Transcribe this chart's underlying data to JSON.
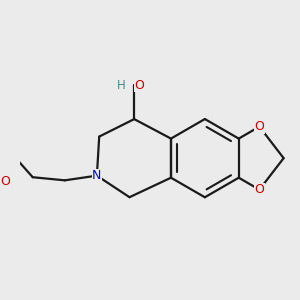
{
  "background_color": "#ebebeb",
  "bond_color": "#1a1a1a",
  "atom_colors": {
    "O": "#cc0000",
    "N": "#0000cc",
    "H": "#4a8a8a",
    "C": "#1a1a1a"
  },
  "figsize": [
    3.0,
    3.0
  ],
  "dpi": 100,
  "bond_lw": 1.6,
  "font_size": 9.0
}
